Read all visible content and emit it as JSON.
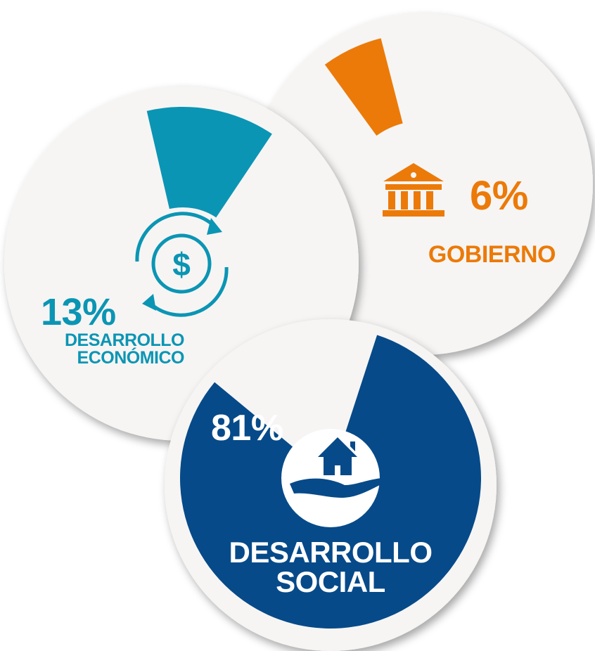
{
  "chart_data": [
    {
      "type": "pie",
      "categories": [
        "GOBIERNO"
      ],
      "values": [
        6
      ],
      "value_labels": [
        "6%"
      ],
      "color": "#ec7a08"
    },
    {
      "type": "pie",
      "categories": [
        "DESARROLLO ECONÓMICO"
      ],
      "values": [
        13
      ],
      "value_labels": [
        "13%"
      ],
      "color": "#0b95b4"
    },
    {
      "type": "pie",
      "categories": [
        "DESARROLLO SOCIAL"
      ],
      "values": [
        81
      ],
      "value_labels": [
        "81%"
      ],
      "color": "#064a89"
    }
  ]
}
